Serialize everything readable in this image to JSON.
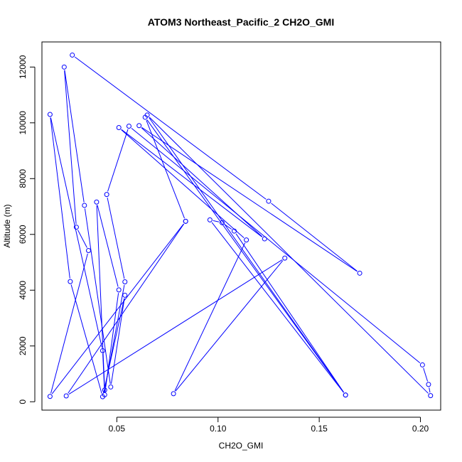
{
  "chart_data": {
    "type": "line",
    "title": "ATOM3 Northeast_Pacific_2 CH2O_GMI",
    "xlabel": "CH2O_GMI",
    "ylabel": "Altitude (m)",
    "xlim": [
      0.013,
      0.21
    ],
    "ylim": [
      -300,
      12900
    ],
    "x_ticks": [
      0.05,
      0.1,
      0.15,
      0.2
    ],
    "x_tick_labels": [
      "0.05",
      "0.10",
      "0.15",
      "0.20"
    ],
    "y_ticks": [
      0,
      2000,
      4000,
      6000,
      8000,
      10000,
      12000
    ],
    "y_tick_labels": [
      "0",
      "2000",
      "4000",
      "6000",
      "8000",
      "10000",
      "12000"
    ],
    "grid": false,
    "markers": "open-circle",
    "color": "#0000ff",
    "series": [
      {
        "points": [
          {
            "x": 0.028,
            "y": 12430
          },
          {
            "x": 0.125,
            "y": 7190
          },
          {
            "x": 0.17,
            "y": 4610
          },
          {
            "x": 0.061,
            "y": 9900
          },
          {
            "x": 0.123,
            "y": 5840
          },
          {
            "x": 0.051,
            "y": 9830
          },
          {
            "x": 0.114,
            "y": 5800
          },
          {
            "x": 0.078,
            "y": 290
          },
          {
            "x": 0.133,
            "y": 5150
          },
          {
            "x": 0.025,
            "y": 210
          },
          {
            "x": 0.084,
            "y": 6470
          },
          {
            "x": 0.017,
            "y": 190
          },
          {
            "x": 0.036,
            "y": 5420
          },
          {
            "x": 0.03,
            "y": 6260
          },
          {
            "x": 0.024,
            "y": 12000
          },
          {
            "x": 0.034,
            "y": 7040
          },
          {
            "x": 0.047,
            "y": 530
          },
          {
            "x": 0.054,
            "y": 3820
          },
          {
            "x": 0.043,
            "y": 180
          },
          {
            "x": 0.027,
            "y": 4310
          },
          {
            "x": 0.017,
            "y": 10300
          },
          {
            "x": 0.043,
            "y": 1830
          },
          {
            "x": 0.044,
            "y": 250
          },
          {
            "x": 0.051,
            "y": 4010
          },
          {
            "x": 0.04,
            "y": 7160
          },
          {
            "x": 0.044,
            "y": 420
          },
          {
            "x": 0.054,
            "y": 4300
          },
          {
            "x": 0.045,
            "y": 7430
          },
          {
            "x": 0.056,
            "y": 9880
          },
          {
            "x": 0.201,
            "y": 1320
          },
          {
            "x": 0.204,
            "y": 620
          },
          {
            "x": 0.205,
            "y": 220
          },
          {
            "x": 0.065,
            "y": 10280
          },
          {
            "x": 0.163,
            "y": 240
          },
          {
            "x": 0.096,
            "y": 6520
          },
          {
            "x": 0.102,
            "y": 6420
          },
          {
            "x": 0.108,
            "y": 6120
          },
          {
            "x": 0.163,
            "y": 240
          },
          {
            "x": 0.064,
            "y": 10200
          },
          {
            "x": 0.084,
            "y": 6470
          }
        ]
      }
    ]
  }
}
